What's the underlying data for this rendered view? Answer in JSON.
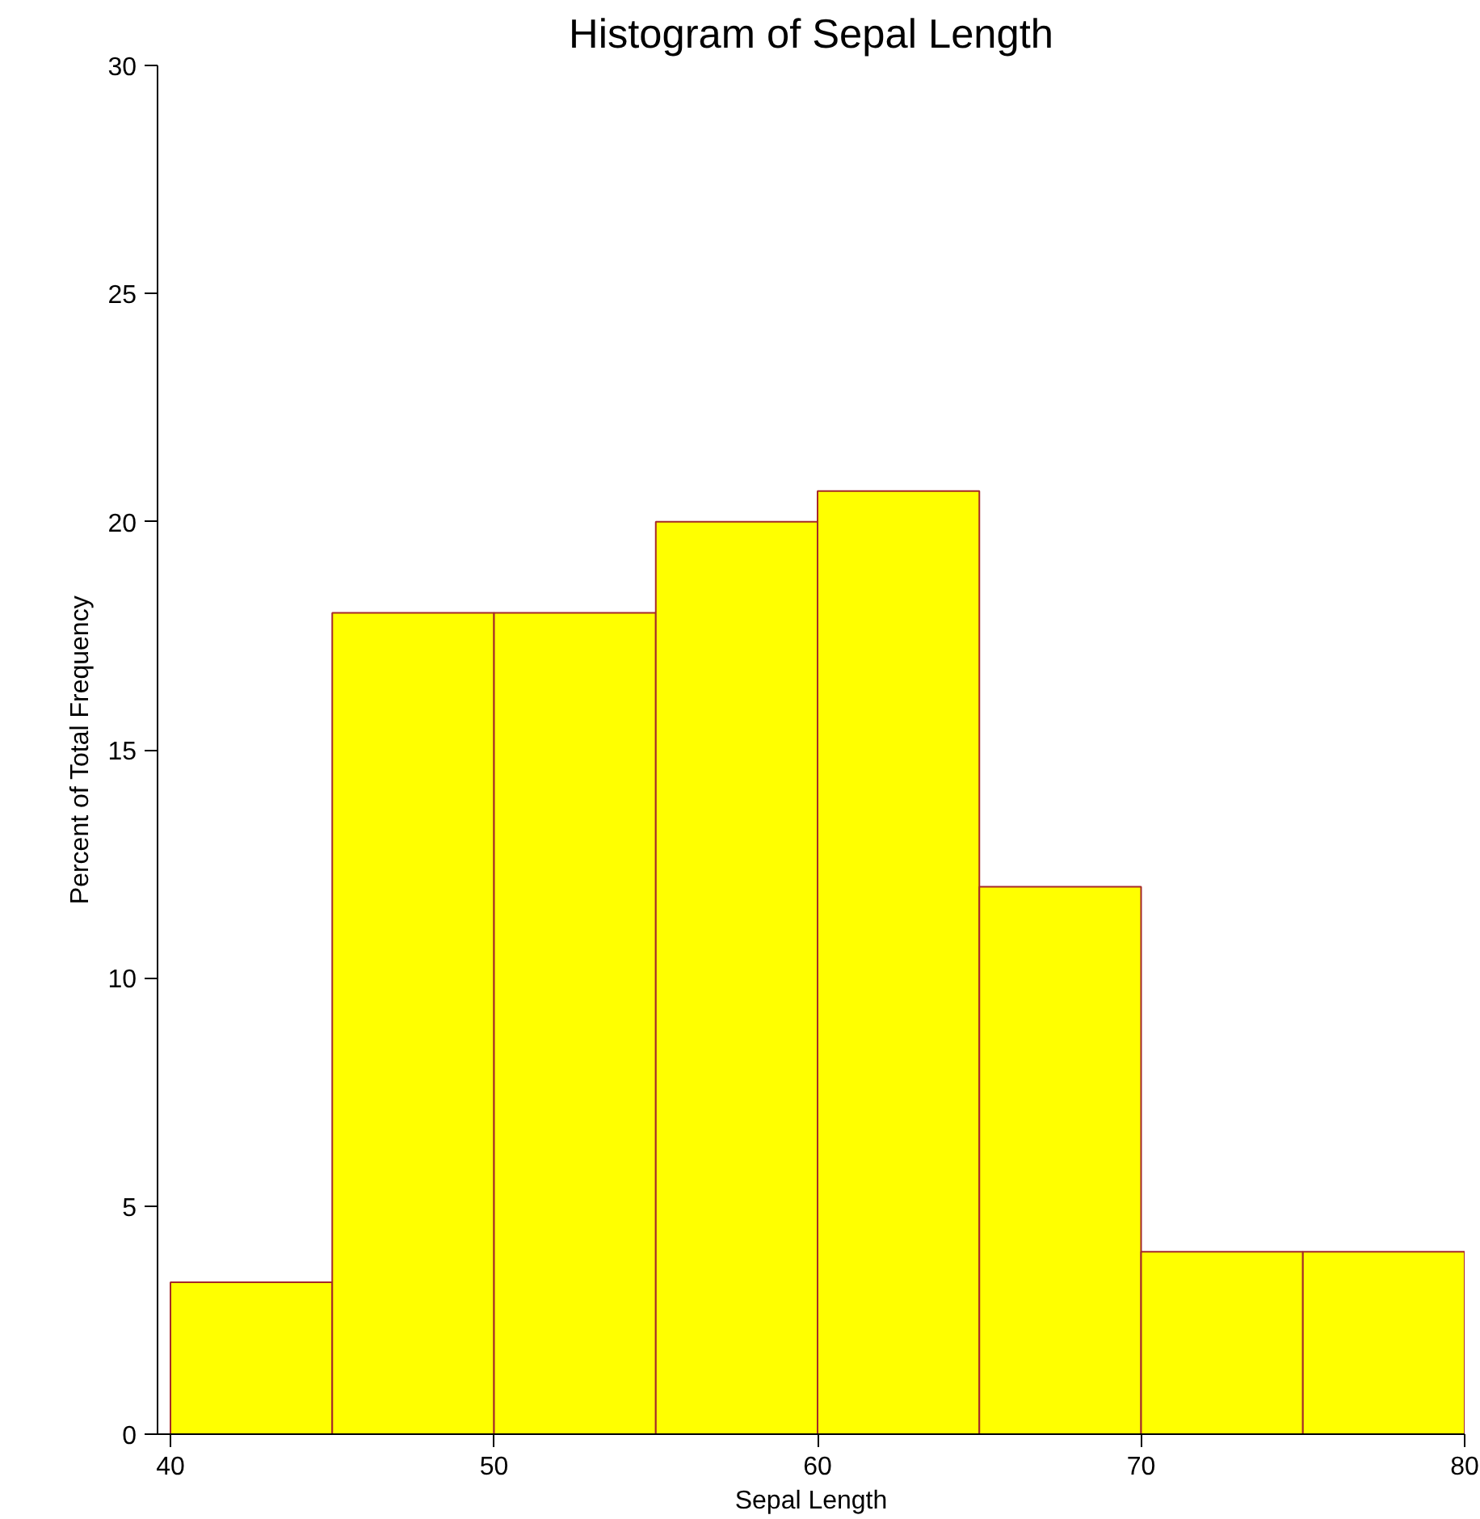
{
  "chart_data": {
    "type": "histogram",
    "title": "Histogram of Sepal Length",
    "xlabel": "Sepal Length",
    "ylabel": "Percent of Total Frequency",
    "bins": [
      40,
      45,
      50,
      55,
      60,
      65,
      70,
      75,
      80
    ],
    "values": [
      3.33,
      18,
      18,
      20,
      20.67,
      12,
      4,
      4
    ],
    "color": "#ffff00",
    "xlim": [
      39.6,
      80
    ],
    "xticks": [
      40,
      50,
      60,
      70,
      80
    ],
    "ylim": [
      0,
      30
    ],
    "yticks": [
      0,
      5,
      10,
      15,
      20,
      25,
      30
    ],
    "grid": false
  }
}
